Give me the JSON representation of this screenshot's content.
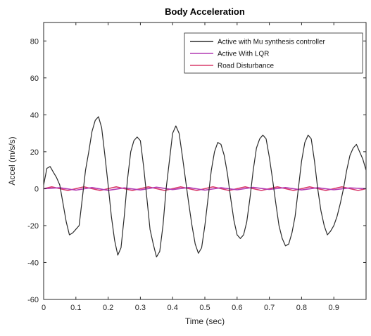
{
  "chart_data": {
    "type": "line",
    "title": "Body Acceleration",
    "xlabel": "Time (sec)",
    "ylabel": "Accel (m/s/s)",
    "xlim": [
      0,
      1
    ],
    "ylim": [
      -60,
      90
    ],
    "xticks": [
      0,
      0.1,
      0.2,
      0.3,
      0.4,
      0.5,
      0.6,
      0.7,
      0.8,
      0.9
    ],
    "yticks": [
      -60,
      -40,
      -20,
      0,
      20,
      40,
      60,
      80
    ],
    "grid": false,
    "legend_position": "top-right",
    "series": [
      {
        "name": "Active with Mu synthesis controller",
        "color": "#2b2b2b",
        "x": [
          0,
          0.01,
          0.02,
          0.03,
          0.04,
          0.05,
          0.06,
          0.07,
          0.08,
          0.09,
          0.1,
          0.11,
          0.12,
          0.13,
          0.14,
          0.15,
          0.16,
          0.17,
          0.18,
          0.19,
          0.2,
          0.21,
          0.22,
          0.23,
          0.24,
          0.25,
          0.26,
          0.27,
          0.28,
          0.29,
          0.3,
          0.31,
          0.32,
          0.33,
          0.34,
          0.35,
          0.36,
          0.37,
          0.38,
          0.39,
          0.4,
          0.41,
          0.42,
          0.43,
          0.44,
          0.45,
          0.46,
          0.47,
          0.48,
          0.49,
          0.5,
          0.51,
          0.52,
          0.53,
          0.54,
          0.55,
          0.56,
          0.57,
          0.58,
          0.59,
          0.6,
          0.61,
          0.62,
          0.63,
          0.64,
          0.65,
          0.66,
          0.67,
          0.68,
          0.69,
          0.7,
          0.71,
          0.72,
          0.73,
          0.74,
          0.75,
          0.76,
          0.77,
          0.78,
          0.79,
          0.8,
          0.81,
          0.82,
          0.83,
          0.84,
          0.85,
          0.86,
          0.87,
          0.88,
          0.89,
          0.9,
          0.91,
          0.92,
          0.93,
          0.94,
          0.95,
          0.96,
          0.97,
          0.98,
          0.99,
          1.0
        ],
        "y": [
          2,
          11,
          12,
          9,
          6,
          2,
          -8,
          -18,
          -25,
          -24,
          -22,
          -20,
          -5,
          10,
          20,
          31,
          37,
          39,
          33,
          18,
          2,
          -15,
          -28,
          -36,
          -32,
          -15,
          5,
          20,
          26,
          28,
          26,
          12,
          -5,
          -22,
          -30,
          -37,
          -34,
          -20,
          0,
          15,
          30,
          34,
          30,
          18,
          5,
          -8,
          -20,
          -30,
          -35,
          -32,
          -20,
          -5,
          10,
          20,
          25,
          24,
          18,
          8,
          -5,
          -17,
          -25,
          -27,
          -25,
          -18,
          -5,
          10,
          22,
          27,
          29,
          27,
          17,
          5,
          -8,
          -20,
          -27,
          -31,
          -30,
          -24,
          -15,
          0,
          15,
          25,
          29,
          27,
          15,
          0,
          -12,
          -20,
          -25,
          -23,
          -20,
          -15,
          -8,
          0,
          10,
          18,
          22,
          24,
          20,
          16,
          10
        ]
      },
      {
        "name": "Active With LQR",
        "color": "#b23ab4",
        "x": [
          0,
          0.05,
          0.1,
          0.15,
          0.2,
          0.25,
          0.3,
          0.35,
          0.4,
          0.45,
          0.5,
          0.55,
          0.6,
          0.65,
          0.7,
          0.75,
          0.8,
          0.85,
          0.9,
          0.95,
          1.0
        ],
        "y": [
          0,
          0.5,
          -0.8,
          0.6,
          -0.9,
          0.4,
          -0.7,
          0.8,
          -0.5,
          0.6,
          -0.8,
          0.5,
          -0.6,
          0.7,
          -0.4,
          0.6,
          -0.7,
          0.5,
          -0.6,
          0.4,
          0
        ]
      },
      {
        "name": "Road Disturbance",
        "color": "#d93a6a",
        "x": [
          0,
          0.025,
          0.05,
          0.075,
          0.1,
          0.125,
          0.15,
          0.175,
          0.2,
          0.225,
          0.25,
          0.275,
          0.3,
          0.325,
          0.35,
          0.375,
          0.4,
          0.425,
          0.45,
          0.475,
          0.5,
          0.525,
          0.55,
          0.575,
          0.6,
          0.625,
          0.65,
          0.675,
          0.7,
          0.725,
          0.75,
          0.775,
          0.8,
          0.825,
          0.85,
          0.875,
          0.9,
          0.925,
          0.95,
          0.975,
          1.0
        ],
        "y": [
          0,
          1,
          0,
          -1,
          0,
          1,
          0,
          -1,
          0,
          1,
          0,
          -1,
          0,
          1,
          0,
          -1,
          0,
          1,
          0,
          -1,
          0,
          1,
          0,
          -1,
          0,
          1,
          0,
          -1,
          0,
          1,
          0,
          -1,
          0,
          1,
          0,
          -1,
          0,
          1,
          0,
          -1,
          0
        ]
      }
    ]
  }
}
